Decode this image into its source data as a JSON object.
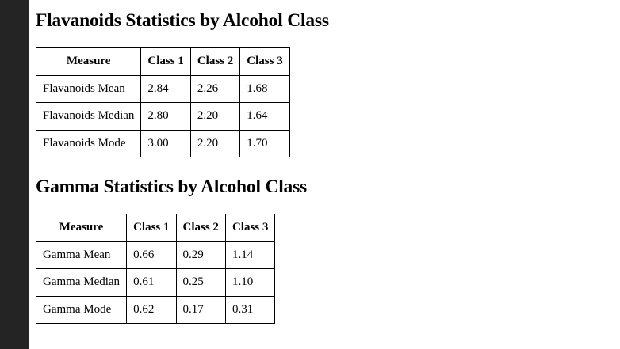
{
  "sections": [
    {
      "title": "Flavanoids Statistics by Alcohol Class",
      "headers": [
        "Measure",
        "Class 1",
        "Class 2",
        "Class 3"
      ],
      "rows": [
        [
          "Flavanoids Mean",
          "2.84",
          "2.26",
          "1.68"
        ],
        [
          "Flavanoids Median",
          "2.80",
          "2.20",
          "1.64"
        ],
        [
          "Flavanoids Mode",
          "3.00",
          "2.20",
          "1.70"
        ]
      ]
    },
    {
      "title": "Gamma Statistics by Alcohol Class",
      "headers": [
        "Measure",
        "Class 1",
        "Class 2",
        "Class 3"
      ],
      "rows": [
        [
          "Gamma Mean",
          "0.66",
          "0.29",
          "1.14"
        ],
        [
          "Gamma Median",
          "0.61",
          "0.25",
          "1.10"
        ],
        [
          "Gamma Mode",
          "0.62",
          "0.17",
          "0.31"
        ]
      ]
    }
  ]
}
